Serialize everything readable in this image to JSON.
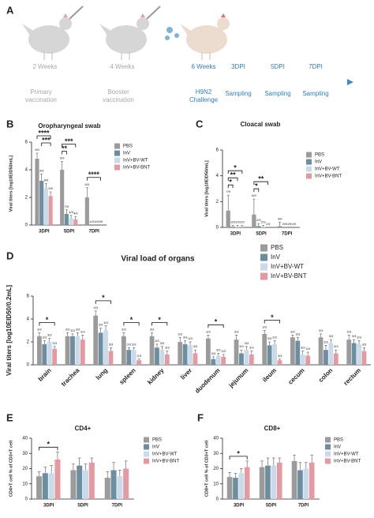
{
  "panel_a": {
    "label": "A",
    "steps": [
      {
        "time": "2 Weeks",
        "note": "Primary vaccination"
      },
      {
        "time": "4 Weeks",
        "note": "Booster vaccination"
      },
      {
        "time": "6 Weeks",
        "note": "H9N2 Challenge"
      },
      {
        "time": "3DPI",
        "note": "Sampling"
      },
      {
        "time": "5DPI",
        "note": "Sampling"
      },
      {
        "time": "7DPI",
        "note": "Sampling"
      }
    ]
  },
  "chart_data": [
    {
      "type": "bar",
      "panel": "B",
      "title": "Oropharyngeal swab",
      "y_label": "Viral titers [log10EID50/mL]",
      "categories": [
        "3DPI",
        "5DPI",
        "7DPI"
      ],
      "ylim": [
        0,
        6
      ],
      "yticks": [
        0,
        2,
        4,
        6
      ],
      "series": [
        {
          "name": "PBS",
          "color": "#9b9b9b",
          "values": [
            4.8,
            4.0,
            2.0
          ],
          "errors": [
            0.4,
            0.6,
            0.7
          ],
          "n_labels": [
            "9/9",
            "9/9",
            "6/9"
          ]
        },
        {
          "name": "InV",
          "color": "#6d8e9f",
          "values": [
            3.2,
            0.8,
            0
          ],
          "errors": [
            0.5,
            0.3,
            0
          ],
          "n_labels": [
            "9/9",
            "7/9",
            "1/9"
          ]
        },
        {
          "name": "InV+BV-WT",
          "color": "#c9dbea",
          "values": [
            2.7,
            0.5,
            0
          ],
          "errors": [
            0.3,
            0.2,
            0
          ],
          "n_labels": [
            "8/9",
            "4/9",
            "1/9"
          ]
        },
        {
          "name": "InV+BV-BNT",
          "color": "#e49aa1",
          "values": [
            2.1,
            0.4,
            0
          ],
          "errors": [
            0.3,
            0.2,
            0
          ],
          "n_labels": [
            "9/9",
            "4/9",
            "0/9"
          ]
        }
      ],
      "significance": [
        {
          "label": "****",
          "category": 0,
          "series": [
            0,
            3
          ]
        },
        {
          "label": "***",
          "category": 0,
          "series": [
            1,
            3
          ]
        },
        {
          "label": "***",
          "category": 1,
          "series": [
            0,
            3
          ]
        },
        {
          "label": "**",
          "category": 1,
          "series": [
            0,
            1
          ]
        },
        {
          "label": "****",
          "category": 2,
          "series": [
            0,
            3
          ]
        }
      ]
    },
    {
      "type": "bar",
      "panel": "C",
      "title": "Cloacal swab",
      "y_label": "Viral titers [log10EID50/mL]",
      "categories": [
        "3DPI",
        "5DPI",
        "7DPI"
      ],
      "ylim": [
        0,
        6
      ],
      "yticks": [
        0,
        2,
        4,
        6
      ],
      "series": [
        {
          "name": "PBS",
          "color": "#9b9b9b",
          "values": [
            1.3,
            1.0,
            0.1
          ],
          "errors": [
            1.2,
            1.2,
            0.3
          ],
          "n_labels": [
            "7/9",
            "6/9",
            "3/9"
          ]
        },
        {
          "name": "InV",
          "color": "#6d8e9f",
          "values": [
            0.05,
            0.1,
            0
          ],
          "errors": [
            0.1,
            0.2,
            0
          ],
          "n_labels": [
            "3/9",
            "2/9",
            "0/9"
          ]
        },
        {
          "name": "InV+BV-WT",
          "color": "#c9dbea",
          "values": [
            0.05,
            0.05,
            0
          ],
          "errors": [
            0.1,
            0.1,
            0
          ],
          "n_labels": [
            "2/9",
            "2/9",
            "0/9"
          ]
        },
        {
          "name": "InV+BV-BNT",
          "color": "#e49aa1",
          "values": [
            0.05,
            0,
            0
          ],
          "errors": [
            0.1,
            0,
            0
          ],
          "n_labels": [
            "2/9",
            "1/9",
            "0/9"
          ]
        }
      ],
      "significance": [
        {
          "label": "*",
          "category": 0,
          "series": [
            0,
            3
          ]
        },
        {
          "label": "**",
          "category": 0,
          "series": [
            0,
            2
          ]
        },
        {
          "label": "*",
          "category": 0,
          "series": [
            0,
            1
          ]
        },
        {
          "label": "**",
          "category": 1,
          "series": [
            0,
            3
          ]
        },
        {
          "label": "*",
          "category": 1,
          "series": [
            0,
            1
          ]
        }
      ]
    },
    {
      "type": "bar",
      "panel": "D",
      "title": "Viral load of organs",
      "y_label": "Viral titers [log10EID50/0.2mL]",
      "categories": [
        "brain",
        "trachea",
        "lung",
        "spleen",
        "kidney",
        "liver",
        "duodenum",
        "jejunum",
        "ileum",
        "cecum",
        "colon",
        "rectum"
      ],
      "ylim": [
        0,
        6
      ],
      "yticks": [
        0,
        2,
        4,
        6
      ],
      "series": [
        {
          "name": "PBS",
          "color": "#9b9b9b",
          "values": [
            2.5,
            2.5,
            4.3,
            2.5,
            2.5,
            2.0,
            2.3,
            2.2,
            2.7,
            2.4,
            2.4,
            2.2
          ],
          "errors": [
            0.3,
            0.3,
            0.4,
            0.3,
            0.3,
            0.4,
            0.3,
            0.4,
            0.3,
            0.2,
            0.3,
            0.4
          ],
          "n_labels": [
            "3/3",
            "3/3",
            "3/3",
            "3/3",
            "3/3",
            "3/3",
            "3/3",
            "3/3",
            "3/3",
            "3/3",
            "3/3",
            "3/3"
          ]
        },
        {
          "name": "InV",
          "color": "#6d8e9f",
          "values": [
            1.8,
            2.5,
            2.8,
            1.3,
            1.5,
            1.8,
            0.5,
            1.0,
            1.7,
            2.1,
            1.3,
            1.9
          ],
          "errors": [
            0.3,
            0.2,
            0.4,
            0.2,
            0.3,
            0.3,
            0.2,
            0.3,
            0.3,
            0.3,
            0.4,
            0.3
          ],
          "n_labels": [
            "3/3",
            "3/3",
            "3/3",
            "3/3",
            "3/3",
            "3/3",
            "3/3",
            "3/3",
            "3/3",
            "3/3",
            "3/3",
            "3/3"
          ]
        },
        {
          "name": "InV+BV-WT",
          "color": "#c9dbea",
          "values": [
            2.0,
            2.5,
            3.0,
            1.3,
            1.3,
            1.7,
            0.8,
            1.3,
            1.8,
            0.9,
            1.9,
            1.8
          ],
          "errors": [
            0.3,
            0.3,
            0.4,
            0.2,
            0.3,
            0.3,
            0.2,
            0.3,
            0.3,
            0.3,
            0.3,
            0.3
          ],
          "n_labels": [
            "3/3",
            "3/3",
            "3/3",
            "3/3",
            "3/3",
            "3/3",
            "3/3",
            "3/3",
            "3/3",
            "3/3",
            "3/3",
            "3/3"
          ]
        },
        {
          "name": "InV+BV-BNT",
          "color": "#e49aa1",
          "values": [
            1.4,
            2.2,
            1.2,
            0.4,
            0.9,
            1.0,
            0.7,
            0.9,
            0.4,
            0.8,
            1.0,
            1.2
          ],
          "errors": [
            0.2,
            0.4,
            0.3,
            0.1,
            0.3,
            0.3,
            0.2,
            0.3,
            0.1,
            0.3,
            0.3,
            0.3
          ],
          "n_labels": [
            "3/3",
            "3/3",
            "3/3",
            "3/3",
            "3/3",
            "3/3",
            "3/3",
            "3/3",
            "3/3",
            "3/3",
            "3/3",
            "3/3"
          ]
        }
      ],
      "significance": [
        {
          "label": "*",
          "category": 0,
          "series": [
            0,
            3
          ]
        },
        {
          "label": "*",
          "category": 2,
          "series": [
            0,
            3
          ]
        },
        {
          "label": "*",
          "category": 3,
          "series": [
            0,
            3
          ]
        },
        {
          "label": "*",
          "category": 4,
          "series": [
            0,
            3
          ]
        },
        {
          "label": "*",
          "category": 6,
          "series": [
            0,
            3
          ]
        },
        {
          "label": "*",
          "category": 8,
          "series": [
            0,
            3
          ]
        }
      ]
    },
    {
      "type": "bar",
      "panel": "E",
      "title": "CD4+",
      "y_label": "CD4+T cell % of CD3+T cell",
      "categories": [
        "3DPI",
        "5DPI",
        "7DPI"
      ],
      "ylim": [
        0,
        40
      ],
      "yticks": [
        0,
        10,
        20,
        30,
        40
      ],
      "series": [
        {
          "name": "PBS",
          "color": "#9b9b9b",
          "values": [
            15,
            19,
            14
          ],
          "errors": [
            3,
            4,
            4
          ]
        },
        {
          "name": "InV",
          "color": "#6d8e9f",
          "values": [
            17,
            22,
            19
          ],
          "errors": [
            4,
            5,
            5
          ]
        },
        {
          "name": "InV+BV-WT",
          "color": "#c9dbea",
          "values": [
            17,
            19,
            15
          ],
          "errors": [
            5,
            4,
            4
          ]
        },
        {
          "name": "InV+BV-BNT",
          "color": "#e49aa1",
          "values": [
            26,
            24,
            20
          ],
          "errors": [
            5,
            3,
            5
          ]
        }
      ],
      "significance": [
        {
          "label": "*",
          "category": 0,
          "series": [
            0,
            3
          ]
        }
      ]
    },
    {
      "type": "bar",
      "panel": "F",
      "title": "CD8+",
      "y_label": "CD8+T cell % of CD3+T cell",
      "categories": [
        "3DPI",
        "5DPI",
        "7DPI"
      ],
      "ylim": [
        0,
        40
      ],
      "yticks": [
        0,
        10,
        20,
        30,
        40
      ],
      "series": [
        {
          "name": "PBS",
          "color": "#9b9b9b",
          "values": [
            14.5,
            21,
            25
          ],
          "errors": [
            3,
            4,
            4
          ]
        },
        {
          "name": "InV",
          "color": "#6d8e9f",
          "values": [
            14,
            22,
            19
          ],
          "errors": [
            3,
            5,
            5
          ]
        },
        {
          "name": "InV+BV-WT",
          "color": "#c9dbea",
          "values": [
            17,
            22,
            20
          ],
          "errors": [
            3,
            5,
            4
          ]
        },
        {
          "name": "InV+BV-BNT",
          "color": "#e49aa1",
          "values": [
            21,
            24,
            24
          ],
          "errors": [
            4,
            3,
            5
          ]
        }
      ],
      "significance": [
        {
          "label": "*",
          "category": 0,
          "series": [
            0,
            3
          ]
        }
      ]
    }
  ]
}
